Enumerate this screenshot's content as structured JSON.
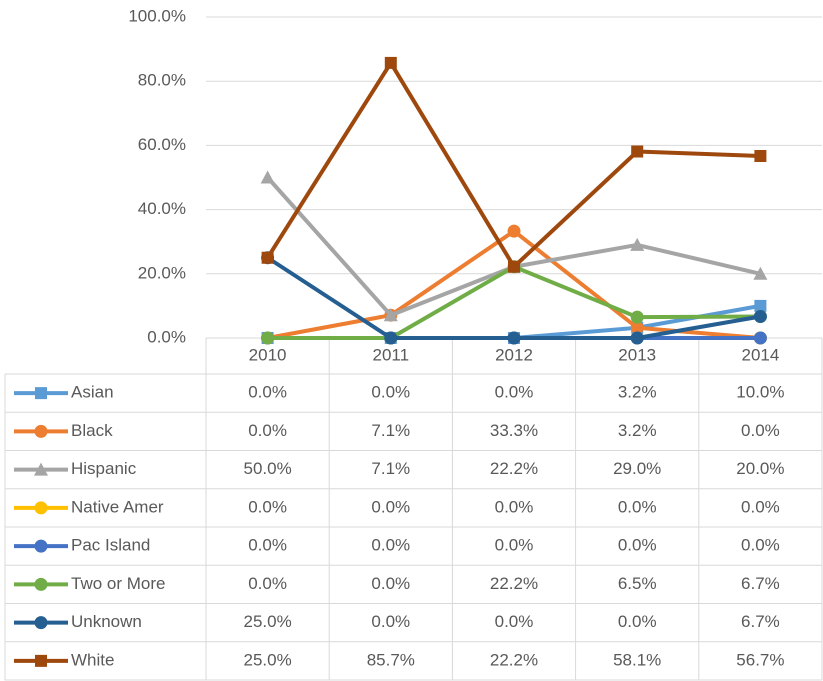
{
  "chart_data": {
    "type": "line",
    "categories": [
      "2010",
      "2011",
      "2012",
      "2013",
      "2014"
    ],
    "ylim": [
      0,
      100
    ],
    "yticks": [
      {
        "value": 0,
        "label": "0.0%"
      },
      {
        "value": 20,
        "label": "20.0%"
      },
      {
        "value": 40,
        "label": "40.0%"
      },
      {
        "value": 60,
        "label": "60.0%"
      },
      {
        "value": 80,
        "label": "80.0%"
      },
      {
        "value": 100,
        "label": "100.0%"
      }
    ],
    "grid": true,
    "series": [
      {
        "name": "Asian",
        "color": "#5b9bd5",
        "marker": "square",
        "values": [
          0,
          0,
          0,
          3.2,
          10
        ],
        "value_labels": [
          "0.0%",
          "0.0%",
          "0.0%",
          "3.2%",
          "10.0%"
        ]
      },
      {
        "name": "Black",
        "color": "#ed7d31",
        "marker": "circle",
        "values": [
          0,
          7.1,
          33.3,
          3.2,
          0
        ],
        "value_labels": [
          "0.0%",
          "7.1%",
          "33.3%",
          "3.2%",
          "0.0%"
        ]
      },
      {
        "name": "Hispanic",
        "color": "#a5a5a5",
        "marker": "triangle",
        "values": [
          50,
          7.1,
          22.2,
          29,
          20
        ],
        "value_labels": [
          "50.0%",
          "7.1%",
          "22.2%",
          "29.0%",
          "20.0%"
        ]
      },
      {
        "name": "Native Amer",
        "color": "#ffc000",
        "marker": "circle",
        "values": [
          0,
          0,
          0,
          0,
          0
        ],
        "value_labels": [
          "0.0%",
          "0.0%",
          "0.0%",
          "0.0%",
          "0.0%"
        ]
      },
      {
        "name": "Pac Island",
        "color": "#4472c4",
        "marker": "circle",
        "values": [
          0,
          0,
          0,
          0,
          0
        ],
        "value_labels": [
          "0.0%",
          "0.0%",
          "0.0%",
          "0.0%",
          "0.0%"
        ]
      },
      {
        "name": "Two or More",
        "color": "#70ad47",
        "marker": "circle",
        "values": [
          0,
          0,
          22.2,
          6.5,
          6.7
        ],
        "value_labels": [
          "0.0%",
          "0.0%",
          "22.2%",
          "6.5%",
          "6.7%"
        ]
      },
      {
        "name": "Unknown",
        "color": "#255e91",
        "marker": "circle",
        "values": [
          25,
          0,
          0,
          0,
          6.7
        ],
        "value_labels": [
          "25.0%",
          "0.0%",
          "0.0%",
          "0.0%",
          "6.7%"
        ]
      },
      {
        "name": "White",
        "color": "#9e480e",
        "marker": "square",
        "values": [
          25,
          85.7,
          22.2,
          58.1,
          56.7
        ],
        "value_labels": [
          "25.0%",
          "85.7%",
          "22.2%",
          "58.1%",
          "56.7%"
        ]
      }
    ]
  }
}
